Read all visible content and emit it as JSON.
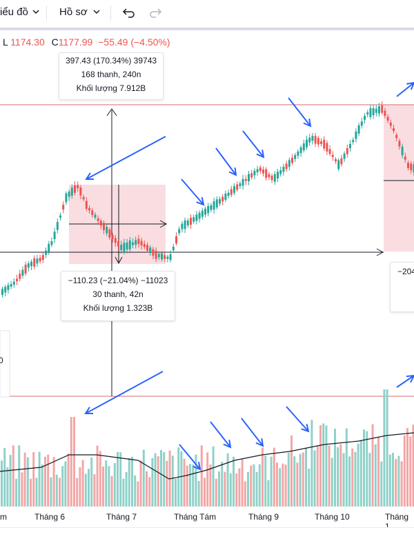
{
  "toolbar": {
    "chart_type_label": "iểu đồ",
    "profile_label": "Hồ sơ",
    "chevron": "chevron-down-icon",
    "undo_icon": "undo-icon",
    "redo_icon": "redo-icon"
  },
  "ohlc": {
    "l_label": "L",
    "l_value": "1174.30",
    "c_label": "C",
    "c_value": "1177.99",
    "change": "−55.49 (−4.50%)"
  },
  "measure_top": {
    "line1": "397.43 (170.34%) 39743",
    "line2": "168 thanh, 240n",
    "line3": "Khối lượng 7.912B"
  },
  "measure_bottom": {
    "line1": "−110.23 (−21.04%) −11023",
    "line2": "30 thanh, 42n",
    "line3": "Khối lượng 1.323B"
  },
  "measure_right": {
    "line1": "−204"
  },
  "side_left": {
    "value": "0"
  },
  "x_axis": [
    "m",
    "Tháng 6",
    "Tháng 7",
    "Tháng Tám",
    "Tháng 9",
    "Tháng 10",
    "Tháng 1"
  ],
  "colors": {
    "up": "#26a69a",
    "down": "#ef5350",
    "arrow": "#2962ff",
    "range_fill": "#f8d7dc",
    "hline": "#d36b6b"
  }
}
